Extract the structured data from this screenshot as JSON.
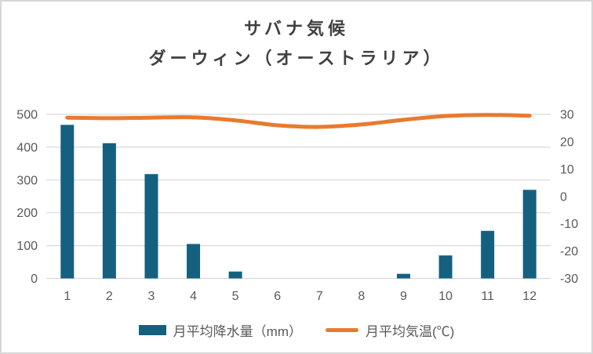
{
  "window": {
    "background": "#ffffff",
    "border_color": "#d6d6d6"
  },
  "header": {
    "title": "サバナ気候",
    "subtitle": "ダーウィン（オーストラリア）"
  },
  "legend": {
    "items": [
      {
        "label": "月平均降水量（mm）",
        "swatch": "bar-swatch",
        "color": "#15607F"
      },
      {
        "label": "月平均気温(℃)",
        "swatch": "line-swatch",
        "color": "#E87A30"
      }
    ]
  },
  "chart_data": {
    "type": "combo-bar-line",
    "title": "サバナ気候",
    "subtitle": "ダーウィン（オーストラリア）",
    "categories": [
      "1",
      "2",
      "3",
      "4",
      "5",
      "6",
      "7",
      "8",
      "9",
      "10",
      "11",
      "12"
    ],
    "series": [
      {
        "name": "月平均降水量（mm）",
        "type": "bar",
        "axis": "left",
        "color": "#15607F",
        "values": [
          468,
          412,
          318,
          105,
          21,
          1,
          1,
          4,
          14,
          70,
          145,
          270
        ]
      },
      {
        "name": "月平均気温(℃)",
        "type": "line",
        "axis": "right",
        "color": "#E87A30",
        "values": [
          28.8,
          28.6,
          28.8,
          28.9,
          27.8,
          26.0,
          25.4,
          26.3,
          28.0,
          29.4,
          29.8,
          29.5
        ]
      }
    ],
    "left_axis": {
      "min": 0,
      "max": 500,
      "step": 100,
      "tick_labels": [
        "0",
        "100",
        "200",
        "300",
        "400",
        "500"
      ]
    },
    "right_axis": {
      "min": -30,
      "max": 30,
      "step": 10,
      "tick_labels": [
        "30",
        "20",
        "10",
        "0",
        "-10",
        "-20",
        "-30"
      ]
    },
    "grid": true,
    "grid_color": "#D9D9D9",
    "tick_color": "#595959",
    "legend_position": "bottom",
    "xlabel": "",
    "ylabel_left": "mm",
    "ylabel_right": "℃"
  }
}
